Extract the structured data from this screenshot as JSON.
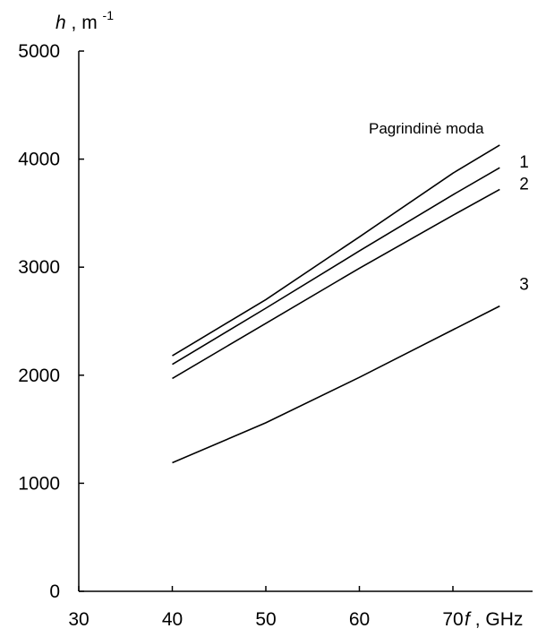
{
  "chart_data": {
    "type": "line",
    "title": "",
    "xlabel": {
      "symbol": "f",
      "unit": ", GHz"
    },
    "ylabel": {
      "symbol": "h",
      "unit": ", m",
      "exponent": "-1"
    },
    "xlim": [
      30,
      77
    ],
    "ylim": [
      0,
      5000
    ],
    "x_ticks": [
      30,
      40,
      50,
      60,
      70
    ],
    "y_ticks": [
      0,
      1000,
      2000,
      3000,
      4000,
      5000
    ],
    "grid": false,
    "legend_title": "Pagrindinė moda",
    "series": [
      {
        "name": "",
        "label": "",
        "x": [
          40,
          50,
          60,
          70,
          75
        ],
        "y": [
          2180,
          2700,
          3280,
          3870,
          4130
        ]
      },
      {
        "name": "1",
        "label": "1",
        "x": [
          40,
          50,
          60,
          70,
          75
        ],
        "y": [
          2100,
          2620,
          3150,
          3670,
          3920
        ]
      },
      {
        "name": "2",
        "label": "2",
        "x": [
          40,
          50,
          60,
          70,
          75
        ],
        "y": [
          1970,
          2480,
          2990,
          3480,
          3720
        ]
      },
      {
        "name": "3",
        "label": "3",
        "x": [
          40,
          50,
          60,
          70,
          75
        ],
        "y": [
          1190,
          1560,
          1980,
          2420,
          2640
        ]
      }
    ]
  }
}
